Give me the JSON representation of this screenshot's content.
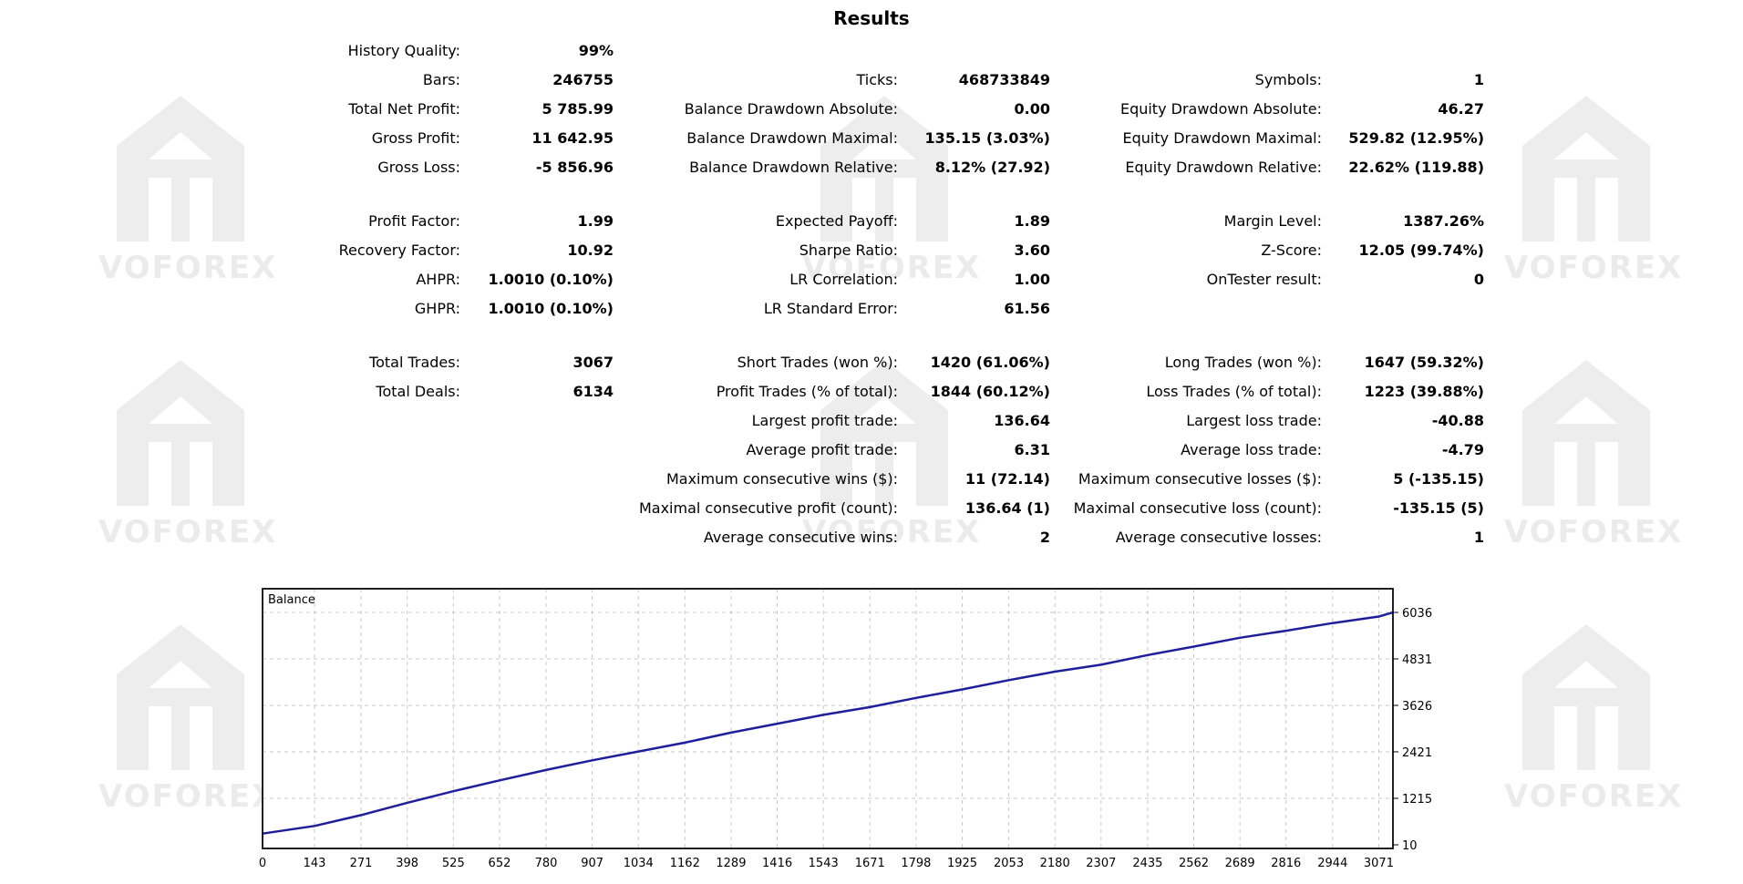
{
  "title": "Results",
  "watermark_text": "VOFOREX",
  "rows": [
    {
      "y": 56,
      "cells": [
        {
          "col": 0,
          "label": "History Quality:",
          "value": "99%"
        }
      ]
    },
    {
      "y": 88,
      "cells": [
        {
          "col": 0,
          "label": "Bars:",
          "value": "246755"
        },
        {
          "col": 1,
          "label": "Ticks:",
          "value": "468733849"
        },
        {
          "col": 2,
          "label": "Symbols:",
          "value": "1"
        }
      ]
    },
    {
      "y": 120,
      "cells": [
        {
          "col": 0,
          "label": "Total Net Profit:",
          "value": "5 785.99"
        },
        {
          "col": 1,
          "label": "Balance Drawdown Absolute:",
          "value": "0.00"
        },
        {
          "col": 2,
          "label": "Equity Drawdown Absolute:",
          "value": "46.27"
        }
      ]
    },
    {
      "y": 152,
      "cells": [
        {
          "col": 0,
          "label": "Gross Profit:",
          "value": "11 642.95"
        },
        {
          "col": 1,
          "label": "Balance Drawdown Maximal:",
          "value": "135.15 (3.03%)"
        },
        {
          "col": 2,
          "label": "Equity Drawdown Maximal:",
          "value": "529.82 (12.95%)"
        }
      ]
    },
    {
      "y": 184,
      "cells": [
        {
          "col": 0,
          "label": "Gross Loss:",
          "value": "-5 856.96"
        },
        {
          "col": 1,
          "label": "Balance Drawdown Relative:",
          "value": "8.12% (27.92)"
        },
        {
          "col": 2,
          "label": "Equity Drawdown Relative:",
          "value": "22.62% (119.88)"
        }
      ]
    },
    {
      "y": 243,
      "cells": [
        {
          "col": 0,
          "label": "Profit Factor:",
          "value": "1.99"
        },
        {
          "col": 1,
          "label": "Expected Payoff:",
          "value": "1.89"
        },
        {
          "col": 2,
          "label": "Margin Level:",
          "value": "1387.26%"
        }
      ]
    },
    {
      "y": 275,
      "cells": [
        {
          "col": 0,
          "label": "Recovery Factor:",
          "value": "10.92"
        },
        {
          "col": 1,
          "label": "Sharpe Ratio:",
          "value": "3.60"
        },
        {
          "col": 2,
          "label": "Z-Score:",
          "value": "12.05 (99.74%)"
        }
      ]
    },
    {
      "y": 307,
      "cells": [
        {
          "col": 0,
          "label": "AHPR:",
          "value": "1.0010 (0.10%)"
        },
        {
          "col": 1,
          "label": "LR Correlation:",
          "value": "1.00"
        },
        {
          "col": 2,
          "label": "OnTester result:",
          "value": "0"
        }
      ]
    },
    {
      "y": 339,
      "cells": [
        {
          "col": 0,
          "label": "GHPR:",
          "value": "1.0010 (0.10%)"
        },
        {
          "col": 1,
          "label": "LR Standard Error:",
          "value": "61.56"
        }
      ]
    },
    {
      "y": 398,
      "cells": [
        {
          "col": 0,
          "label": "Total Trades:",
          "value": "3067"
        },
        {
          "col": 1,
          "label": "Short Trades (won %):",
          "value": "1420 (61.06%)"
        },
        {
          "col": 2,
          "label": "Long Trades (won %):",
          "value": "1647 (59.32%)"
        }
      ]
    },
    {
      "y": 430,
      "cells": [
        {
          "col": 0,
          "label": "Total Deals:",
          "value": "6134"
        },
        {
          "col": 1,
          "label": "Profit Trades (% of total):",
          "value": "1844 (60.12%)"
        },
        {
          "col": 2,
          "label": "Loss Trades (% of total):",
          "value": "1223 (39.88%)"
        }
      ]
    },
    {
      "y": 462,
      "cells": [
        {
          "col": 1,
          "label": "Largest profit trade:",
          "value": "136.64"
        },
        {
          "col": 2,
          "label": "Largest loss trade:",
          "value": "-40.88"
        }
      ]
    },
    {
      "y": 494,
      "cells": [
        {
          "col": 1,
          "label": "Average profit trade:",
          "value": "6.31"
        },
        {
          "col": 2,
          "label": "Average loss trade:",
          "value": "-4.79"
        }
      ]
    },
    {
      "y": 526,
      "cells": [
        {
          "col": 1,
          "label": "Maximum consecutive wins ($):",
          "value": "11 (72.14)"
        },
        {
          "col": 2,
          "label": "Maximum consecutive losses ($):",
          "value": "5 (-135.15)"
        }
      ]
    },
    {
      "y": 558,
      "cells": [
        {
          "col": 1,
          "label": "Maximal consecutive profit (count):",
          "value": "136.64 (1)"
        },
        {
          "col": 2,
          "label": "Maximal consecutive loss (count):",
          "value": "-135.15 (5)"
        }
      ]
    },
    {
      "y": 590,
      "cells": [
        {
          "col": 1,
          "label": "Average consecutive wins:",
          "value": "2"
        },
        {
          "col": 2,
          "label": "Average consecutive losses:",
          "value": "1"
        }
      ]
    }
  ],
  "chart_data": {
    "type": "line",
    "title": "Balance",
    "x_ticks": [
      "0",
      "143",
      "271",
      "398",
      "525",
      "652",
      "780",
      "907",
      "1034",
      "1162",
      "1289",
      "1416",
      "1543",
      "1671",
      "1798",
      "1925",
      "2053",
      "2180",
      "2307",
      "2435",
      "2562",
      "2689",
      "2816",
      "2944",
      "3071"
    ],
    "y_ticks": [
      "10",
      "1215",
      "2421",
      "3626",
      "4831",
      "6036"
    ],
    "ylim": [
      10,
      6036
    ],
    "xlim": [
      0,
      3110
    ],
    "grid": true,
    "line_color": "#1f1f9c",
    "series": [
      {
        "x": [
          0,
          143,
          271,
          398,
          525,
          652,
          780,
          907,
          1034,
          1162,
          1289,
          1416,
          1543,
          1671,
          1798,
          1925,
          2053,
          2180,
          2307,
          2435,
          2562,
          2689,
          2816,
          2944,
          3071,
          3110
        ],
        "values": [
          300,
          500,
          780,
          1100,
          1400,
          1680,
          1950,
          2200,
          2430,
          2660,
          2920,
          3150,
          3380,
          3580,
          3820,
          4040,
          4280,
          4500,
          4680,
          4930,
          5150,
          5380,
          5560,
          5760,
          5930,
          6036
        ]
      }
    ]
  }
}
